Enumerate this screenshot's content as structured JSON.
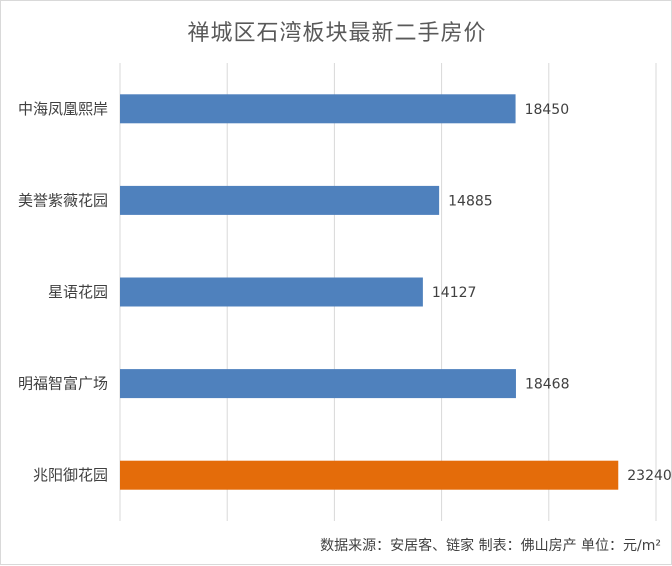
{
  "chart_data": {
    "type": "bar",
    "orientation": "horizontal",
    "title": "禅城区石湾板块最新二手房价",
    "categories": [
      "中海凤凰熙岸",
      "美誉紫薇花园",
      "星语花园",
      "明福智富广场",
      "兆阳御花园"
    ],
    "values": [
      18450,
      14885,
      14127,
      18468,
      23240
    ],
    "value_labels": [
      "18450",
      "14885",
      "14127",
      "18468",
      "23240"
    ],
    "colors": [
      "#4f81bd",
      "#4f81bd",
      "#4f81bd",
      "#4f81bd",
      "#e46c0a"
    ],
    "xlim": [
      0,
      25000
    ],
    "grid": "vertical",
    "legend": "none"
  },
  "footer": {
    "source_note": "数据来源：安居客、链家    制表：佛山房产    单位：元/m²"
  }
}
